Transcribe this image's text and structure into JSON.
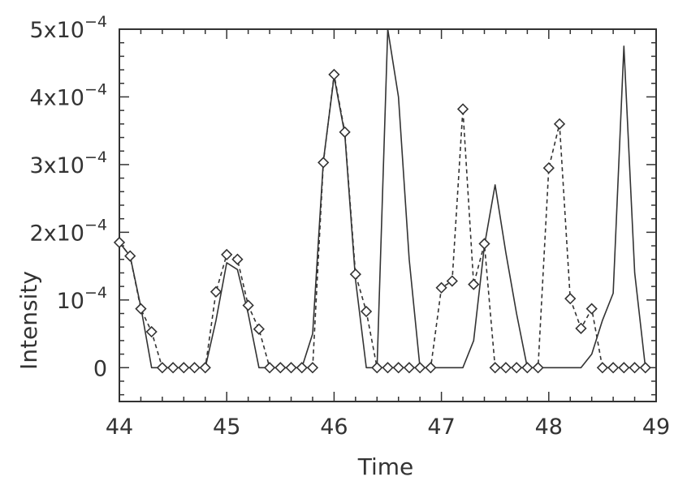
{
  "chart_data": {
    "type": "line",
    "title": "",
    "xlabel": "Time",
    "ylabel": "Intensity",
    "xlim": [
      44,
      49
    ],
    "ylim": [
      -5e-05,
      0.0005
    ],
    "grid": false,
    "legend": "none",
    "x_ticks": [
      44,
      45,
      46,
      47,
      48,
      49
    ],
    "x_tick_labels": [
      "44",
      "45",
      "46",
      "47",
      "48",
      "49"
    ],
    "y_ticks": [
      0,
      0.0001,
      0.0002,
      0.0003,
      0.0004,
      0.0005
    ],
    "y_tick_labels": [
      {
        "mantissa": "0",
        "exponent": ""
      },
      {
        "mantissa": "10",
        "exponent": "−4"
      },
      {
        "mantissa": "2x10",
        "exponent": "−4"
      },
      {
        "mantissa": "3x10",
        "exponent": "−4"
      },
      {
        "mantissa": "4x10",
        "exponent": "−4"
      },
      {
        "mantissa": "5x10",
        "exponent": "−4"
      }
    ],
    "colors": {
      "line": "#333333",
      "axis": "#333333",
      "background": "#ffffff"
    },
    "series": [
      {
        "style": "solid",
        "points": [
          [
            44.0,
            0.000185
          ],
          [
            44.1,
            0.000165
          ],
          [
            44.2,
            9e-05
          ],
          [
            44.3,
            0.0
          ],
          [
            44.4,
            0.0
          ],
          [
            44.8,
            0.0
          ],
          [
            44.9,
            7e-05
          ],
          [
            45.0,
            0.000155
          ],
          [
            45.1,
            0.000145
          ],
          [
            45.2,
            8e-05
          ],
          [
            45.3,
            0.0
          ],
          [
            45.7,
            0.0
          ],
          [
            45.8,
            5e-05
          ],
          [
            45.9,
            0.000305
          ],
          [
            46.0,
            0.00043
          ],
          [
            46.1,
            0.000345
          ],
          [
            46.2,
            0.00013
          ],
          [
            46.3,
            0.0
          ],
          [
            46.4,
            0.0
          ],
          [
            46.5,
            0.0005
          ],
          [
            46.6,
            0.0004
          ],
          [
            46.7,
            0.00016
          ],
          [
            46.8,
            0.0
          ],
          [
            47.2,
            0.0
          ],
          [
            47.3,
            4e-05
          ],
          [
            47.4,
            0.00018
          ],
          [
            47.5,
            0.00027
          ],
          [
            47.6,
            0.00017
          ],
          [
            47.7,
            8e-05
          ],
          [
            47.8,
            0.0
          ],
          [
            48.3,
            0.0
          ],
          [
            48.4,
            2e-05
          ],
          [
            48.5,
            7e-05
          ],
          [
            48.6,
            0.00011
          ],
          [
            48.7,
            0.000475
          ],
          [
            48.8,
            0.00014
          ],
          [
            48.9,
            0.0
          ]
        ]
      },
      {
        "style": "dashed",
        "marker": "diamond",
        "points": [
          [
            44.0,
            0.000185
          ],
          [
            44.1,
            0.000165
          ],
          [
            44.2,
            8.7e-05
          ],
          [
            44.3,
            5.3e-05
          ],
          [
            44.4,
            0.0
          ],
          [
            44.5,
            0.0
          ],
          [
            44.6,
            0.0
          ],
          [
            44.7,
            0.0
          ],
          [
            44.8,
            0.0
          ],
          [
            44.9,
            0.000112
          ],
          [
            45.0,
            0.000167
          ],
          [
            45.1,
            0.00016
          ],
          [
            45.2,
            9.2e-05
          ],
          [
            45.3,
            5.7e-05
          ],
          [
            45.4,
            0.0
          ],
          [
            45.5,
            0.0
          ],
          [
            45.6,
            0.0
          ],
          [
            45.7,
            0.0
          ],
          [
            45.8,
            0.0
          ],
          [
            45.9,
            0.000303
          ],
          [
            46.0,
            0.000433
          ],
          [
            46.1,
            0.000348
          ],
          [
            46.2,
            0.000138
          ],
          [
            46.3,
            8.3e-05
          ],
          [
            46.4,
            0.0
          ],
          [
            46.5,
            0.0
          ],
          [
            46.6,
            0.0
          ],
          [
            46.7,
            0.0
          ],
          [
            46.8,
            0.0
          ],
          [
            46.9,
            0.0
          ],
          [
            47.0,
            0.000118
          ],
          [
            47.1,
            0.000128
          ],
          [
            47.2,
            0.000382
          ],
          [
            47.3,
            0.000123
          ],
          [
            47.4,
            0.000183
          ],
          [
            47.5,
            0.0
          ],
          [
            47.6,
            0.0
          ],
          [
            47.7,
            0.0
          ],
          [
            47.8,
            0.0
          ],
          [
            47.9,
            0.0
          ],
          [
            48.0,
            0.000295
          ],
          [
            48.1,
            0.00036
          ],
          [
            48.2,
            0.000102
          ],
          [
            48.3,
            5.8e-05
          ],
          [
            48.4,
            8.7e-05
          ],
          [
            48.5,
            0.0
          ],
          [
            48.6,
            0.0
          ],
          [
            48.7,
            0.0
          ],
          [
            48.8,
            0.0
          ],
          [
            48.9,
            0.0
          ]
        ]
      }
    ]
  }
}
